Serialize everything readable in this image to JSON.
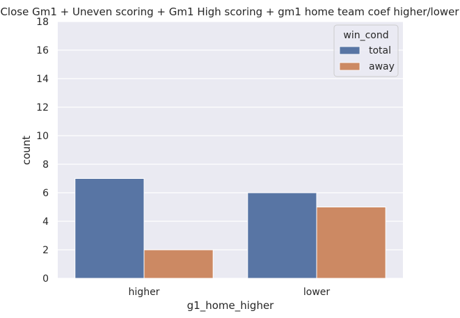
{
  "chart_data": {
    "type": "bar",
    "title": "Close Gm1 + Uneven scoring + Gm1 High scoring + gm1 home team coef higher/lower",
    "xlabel": "g1_home_higher",
    "ylabel": "count",
    "categories": [
      "higher",
      "lower"
    ],
    "series": [
      {
        "name": "total",
        "values": [
          7,
          6
        ],
        "color": "#5875a4"
      },
      {
        "name": "away",
        "values": [
          2,
          5
        ],
        "color": "#cc8963"
      }
    ],
    "ylim": [
      0,
      18
    ],
    "yticks": [
      "0",
      "2",
      "4",
      "6",
      "8",
      "10",
      "12",
      "14",
      "16",
      "18"
    ],
    "grid": true,
    "legend": {
      "title": "win_cond",
      "position": "top-right"
    },
    "colors": {
      "plot_bg": "#eaeaf2",
      "grid": "#ffffff",
      "text": "#262626"
    }
  }
}
